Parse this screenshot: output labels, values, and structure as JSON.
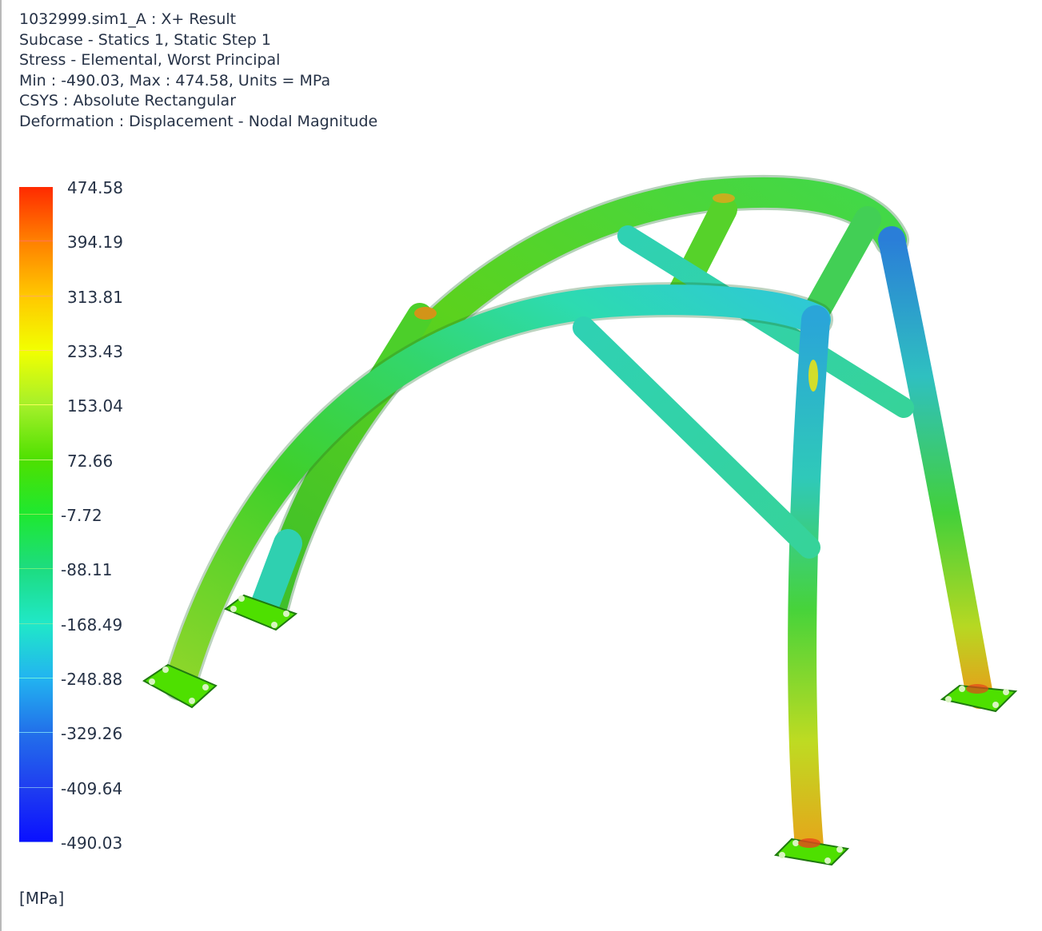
{
  "header": {
    "line1": "1032999.sim1_A : X+ Result",
    "line2": "Subcase - Statics 1, Static Step 1",
    "line3": "Stress - Elemental, Worst Principal",
    "line4": "Min : -490.03, Max : 474.58, Units = MPa",
    "line5": "CSYS : Absolute Rectangular",
    "line6": "Deformation : Displacement - Nodal Magnitude"
  },
  "legend": {
    "labels": [
      "474.58",
      "394.19",
      "313.81",
      "233.43",
      "153.04",
      "72.66",
      "-7.72",
      "-88.11",
      "-168.49",
      "-248.88",
      "-329.26",
      "-409.64",
      "-490.03"
    ],
    "band_colors": [
      "#ff2a00",
      "#ff8000",
      "#ffc800",
      "#f2ff00",
      "#a6f02a",
      "#4ee000",
      "#1ee830",
      "#1ddc80",
      "#20e8c8",
      "#22b4f0",
      "#2270ea",
      "#1f3ef0",
      "#0a10ff"
    ],
    "units": "[MPa]"
  },
  "model": {
    "description": "roll-cage-stress-contour",
    "colors": {
      "tube_green": "#3ecf2a",
      "tube_light_green": "#8fe03a",
      "tube_cyan": "#25d7b6",
      "tube_blue": "#2e8fe0",
      "tube_yellow": "#e6e21a",
      "tube_orange": "#ea8a15",
      "tube_red": "#e6451a",
      "plate_green": "#4ee000"
    }
  }
}
